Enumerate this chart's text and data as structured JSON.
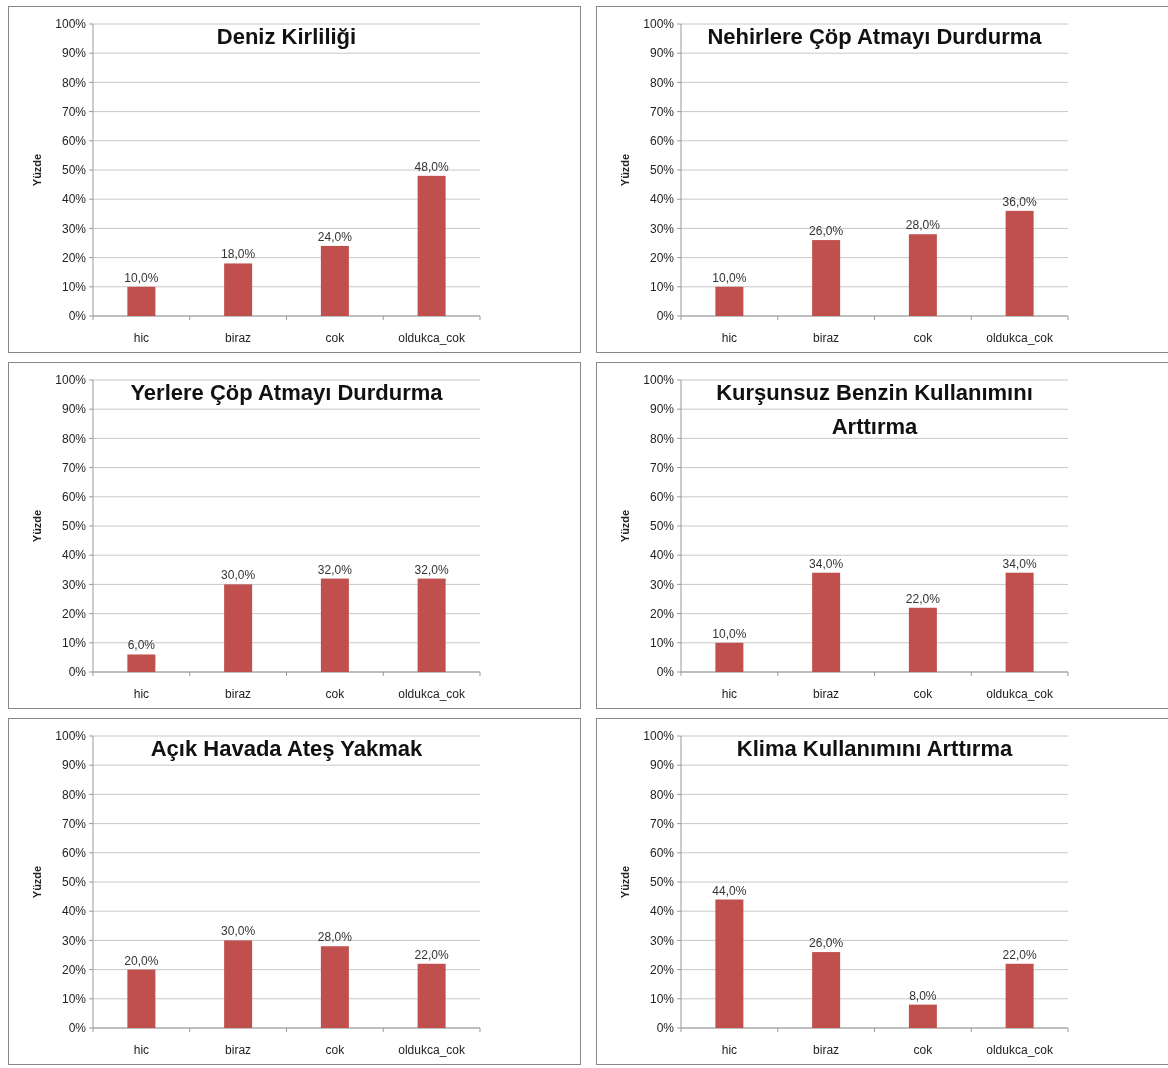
{
  "chart_data": [
    {
      "type": "bar",
      "title": "Deniz Kirliliği",
      "ylabel": "Yüzde",
      "categories": [
        "hic",
        "biraz",
        "cok",
        "oldukca_cok"
      ],
      "values": [
        10,
        18,
        24,
        48
      ],
      "value_labels": [
        "10,0%",
        "18,0%",
        "24,0%",
        "48,0%"
      ],
      "color": "#c0504d",
      "ylim": [
        0,
        100
      ],
      "yticks": [
        {
          "value": 0,
          "label": "0%"
        },
        {
          "value": 10,
          "label": "10%"
        },
        {
          "value": 20,
          "label": "20%"
        },
        {
          "value": 30,
          "label": "30%"
        },
        {
          "value": 40,
          "label": "40%"
        },
        {
          "value": 50,
          "label": "50%"
        },
        {
          "value": 60,
          "label": "60%"
        },
        {
          "value": 70,
          "label": "70%"
        },
        {
          "value": 80,
          "label": "80%"
        },
        {
          "value": 90,
          "label": "90%"
        },
        {
          "value": 100,
          "label": "100%"
        }
      ],
      "grid": "y"
    },
    {
      "type": "bar",
      "title": "Nehirlere Çöp Atmayı Durdurma",
      "ylabel": "Yüzde",
      "categories": [
        "hic",
        "biraz",
        "cok",
        "oldukca_cok"
      ],
      "values": [
        10,
        26,
        28,
        36
      ],
      "value_labels": [
        "10,0%",
        "26,0%",
        "28,0%",
        "36,0%"
      ],
      "color": "#c0504d",
      "ylim": [
        0,
        100
      ],
      "yticks": [
        {
          "value": 0,
          "label": "0%"
        },
        {
          "value": 10,
          "label": "10%"
        },
        {
          "value": 20,
          "label": "20%"
        },
        {
          "value": 30,
          "label": "30%"
        },
        {
          "value": 40,
          "label": "40%"
        },
        {
          "value": 50,
          "label": "50%"
        },
        {
          "value": 60,
          "label": "60%"
        },
        {
          "value": 70,
          "label": "70%"
        },
        {
          "value": 80,
          "label": "80%"
        },
        {
          "value": 90,
          "label": "90%"
        },
        {
          "value": 100,
          "label": "100%"
        }
      ],
      "grid": "y"
    },
    {
      "type": "bar",
      "title": "Yerlere Çöp Atmayı Durdurma",
      "ylabel": "Yüzde",
      "categories": [
        "hic",
        "biraz",
        "cok",
        "oldukca_cok"
      ],
      "values": [
        6,
        30,
        32,
        32
      ],
      "value_labels": [
        "6,0%",
        "30,0%",
        "32,0%",
        "32,0%"
      ],
      "color": "#c0504d",
      "ylim": [
        0,
        100
      ],
      "yticks": [
        {
          "value": 0,
          "label": "0%"
        },
        {
          "value": 10,
          "label": "10%"
        },
        {
          "value": 20,
          "label": "20%"
        },
        {
          "value": 30,
          "label": "30%"
        },
        {
          "value": 40,
          "label": "40%"
        },
        {
          "value": 50,
          "label": "50%"
        },
        {
          "value": 60,
          "label": "60%"
        },
        {
          "value": 70,
          "label": "70%"
        },
        {
          "value": 80,
          "label": "80%"
        },
        {
          "value": 90,
          "label": "90%"
        },
        {
          "value": 100,
          "label": "100%"
        }
      ],
      "grid": "y"
    },
    {
      "type": "bar",
      "title": "Kurşunsuz Benzin Kullanımını Arttırma",
      "ylabel": "Yüzde",
      "categories": [
        "hic",
        "biraz",
        "cok",
        "oldukca_cok"
      ],
      "values": [
        10,
        34,
        22,
        34
      ],
      "value_labels": [
        "10,0%",
        "34,0%",
        "22,0%",
        "34,0%"
      ],
      "color": "#c0504d",
      "ylim": [
        0,
        100
      ],
      "yticks": [
        {
          "value": 0,
          "label": "0%"
        },
        {
          "value": 10,
          "label": "10%"
        },
        {
          "value": 20,
          "label": "20%"
        },
        {
          "value": 30,
          "label": "30%"
        },
        {
          "value": 40,
          "label": "40%"
        },
        {
          "value": 50,
          "label": "50%"
        },
        {
          "value": 60,
          "label": "60%"
        },
        {
          "value": 70,
          "label": "70%"
        },
        {
          "value": 80,
          "label": "80%"
        },
        {
          "value": 90,
          "label": "90%"
        },
        {
          "value": 100,
          "label": "100%"
        }
      ],
      "grid": "y"
    },
    {
      "type": "bar",
      "title": "Açık Havada Ateş Yakmak",
      "ylabel": "Yüzde",
      "categories": [
        "hic",
        "biraz",
        "cok",
        "oldukca_cok"
      ],
      "values": [
        20,
        30,
        28,
        22
      ],
      "value_labels": [
        "20,0%",
        "30,0%",
        "28,0%",
        "22,0%"
      ],
      "color": "#c0504d",
      "ylim": [
        0,
        100
      ],
      "yticks": [
        {
          "value": 0,
          "label": "0%"
        },
        {
          "value": 10,
          "label": "10%"
        },
        {
          "value": 20,
          "label": "20%"
        },
        {
          "value": 30,
          "label": "30%"
        },
        {
          "value": 40,
          "label": "40%"
        },
        {
          "value": 50,
          "label": "50%"
        },
        {
          "value": 60,
          "label": "60%"
        },
        {
          "value": 70,
          "label": "70%"
        },
        {
          "value": 80,
          "label": "80%"
        },
        {
          "value": 90,
          "label": "90%"
        },
        {
          "value": 100,
          "label": "100%"
        }
      ],
      "grid": "y"
    },
    {
      "type": "bar",
      "title": "Klima Kullanımını Arttırma",
      "ylabel": "Yüzde",
      "categories": [
        "hic",
        "biraz",
        "cok",
        "oldukca_cok"
      ],
      "values": [
        44,
        26,
        8,
        22
      ],
      "value_labels": [
        "44,0%",
        "26,0%",
        "8,0%",
        "22,0%"
      ],
      "color": "#c0504d",
      "ylim": [
        0,
        100
      ],
      "yticks": [
        {
          "value": 0,
          "label": "0%"
        },
        {
          "value": 10,
          "label": "10%"
        },
        {
          "value": 20,
          "label": "20%"
        },
        {
          "value": 30,
          "label": "30%"
        },
        {
          "value": 40,
          "label": "40%"
        },
        {
          "value": 50,
          "label": "50%"
        },
        {
          "value": 60,
          "label": "60%"
        },
        {
          "value": 70,
          "label": "70%"
        },
        {
          "value": 80,
          "label": "80%"
        },
        {
          "value": 90,
          "label": "90%"
        },
        {
          "value": 100,
          "label": "100%"
        }
      ],
      "grid": "y"
    }
  ]
}
